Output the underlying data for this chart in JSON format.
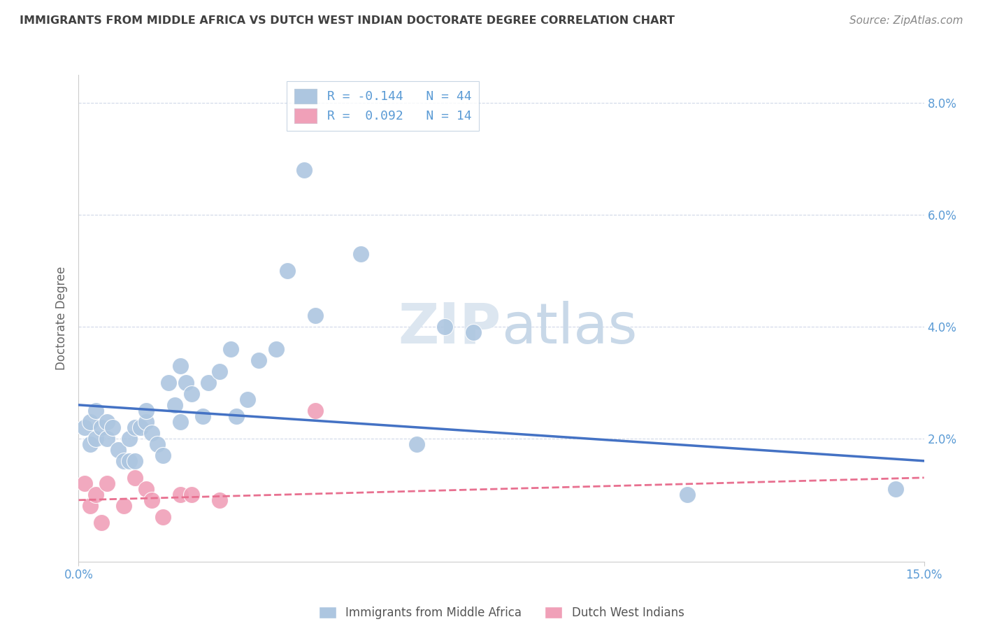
{
  "title": "IMMIGRANTS FROM MIDDLE AFRICA VS DUTCH WEST INDIAN DOCTORATE DEGREE CORRELATION CHART",
  "source": "Source: ZipAtlas.com",
  "ylabel": "Doctorate Degree",
  "xlim": [
    0.0,
    0.15
  ],
  "ylim": [
    -0.002,
    0.085
  ],
  "blue_color": "#adc6e0",
  "pink_color": "#f0a0b8",
  "blue_line_color": "#4472c4",
  "pink_line_color": "#e87090",
  "grid_color": "#d0d8e8",
  "background_color": "#ffffff",
  "tick_color": "#5b9bd5",
  "title_color": "#404040",
  "watermark_color": "#dce6f0",
  "blue_scatter_x": [
    0.001,
    0.002,
    0.002,
    0.003,
    0.003,
    0.004,
    0.005,
    0.005,
    0.006,
    0.007,
    0.008,
    0.009,
    0.009,
    0.01,
    0.01,
    0.011,
    0.012,
    0.012,
    0.013,
    0.014,
    0.015,
    0.016,
    0.017,
    0.018,
    0.018,
    0.019,
    0.02,
    0.022,
    0.023,
    0.025,
    0.027,
    0.028,
    0.03,
    0.032,
    0.035,
    0.037,
    0.04,
    0.042,
    0.05,
    0.06,
    0.065,
    0.07,
    0.108,
    0.145
  ],
  "blue_scatter_y": [
    0.022,
    0.023,
    0.019,
    0.025,
    0.02,
    0.022,
    0.023,
    0.02,
    0.022,
    0.018,
    0.016,
    0.016,
    0.02,
    0.016,
    0.022,
    0.022,
    0.023,
    0.025,
    0.021,
    0.019,
    0.017,
    0.03,
    0.026,
    0.023,
    0.033,
    0.03,
    0.028,
    0.024,
    0.03,
    0.032,
    0.036,
    0.024,
    0.027,
    0.034,
    0.036,
    0.05,
    0.068,
    0.042,
    0.053,
    0.019,
    0.04,
    0.039,
    0.01,
    0.011
  ],
  "pink_scatter_x": [
    0.001,
    0.002,
    0.003,
    0.004,
    0.005,
    0.008,
    0.01,
    0.012,
    0.013,
    0.015,
    0.018,
    0.02,
    0.025,
    0.042
  ],
  "pink_scatter_y": [
    0.012,
    0.008,
    0.01,
    0.005,
    0.012,
    0.008,
    0.013,
    0.011,
    0.009,
    0.006,
    0.01,
    0.01,
    0.009,
    0.025
  ],
  "blue_line_x0": 0.0,
  "blue_line_y0": 0.026,
  "blue_line_x1": 0.15,
  "blue_line_y1": 0.016,
  "pink_line_x0": 0.0,
  "pink_line_y0": 0.009,
  "pink_line_x1": 0.15,
  "pink_line_y1": 0.013
}
